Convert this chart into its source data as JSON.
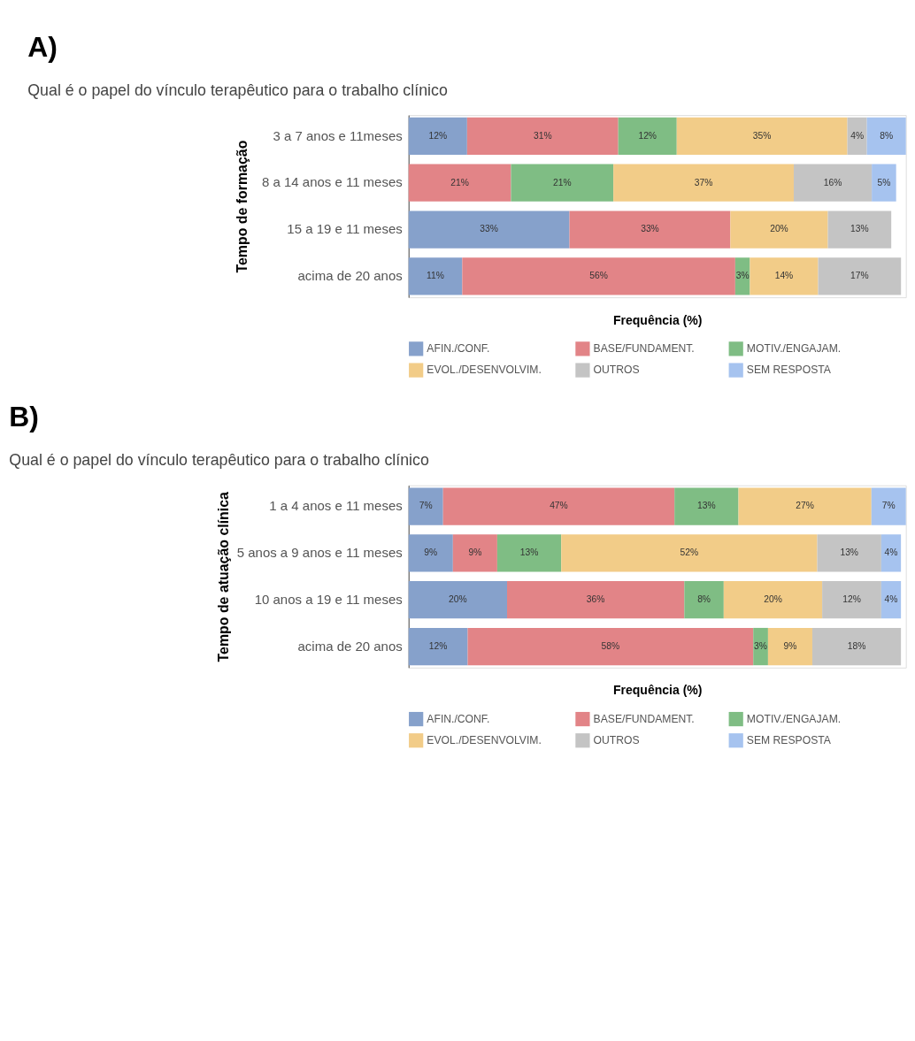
{
  "chart_data": [
    {
      "type": "bar",
      "orientation": "horizontal",
      "stacked": true,
      "title": "Qual é o papel do vínculo terapêutico para o  trabalho clínico",
      "annotations": [
        "A)"
      ],
      "xlabel": "Frequência (%)",
      "ylabel": "Tempo de formação",
      "legend": "bottom",
      "grid": false,
      "tick_labels": "y",
      "categories": [
        "3 a 7 anos e 11meses",
        "8 a 14 anos e 11 meses",
        "15  a 19 e 11 meses",
        "acima de 20 anos"
      ],
      "series": [
        {
          "name": "AFIN./CONF.",
          "color": "#86a1cb",
          "values": [
            12,
            null,
            33,
            11
          ],
          "value_labels": [
            "12%",
            null,
            "33%",
            "11%"
          ]
        },
        {
          "name": "BASE/FUNDAMENT.",
          "color": "#e28487",
          "values": [
            31,
            21,
            33,
            56
          ],
          "value_labels": [
            "31%",
            "21%",
            "33%",
            "56%"
          ]
        },
        {
          "name": "MOTIV./ENGAJAM.",
          "color": "#7fbd84",
          "values": [
            12,
            21,
            null,
            3
          ],
          "value_labels": [
            "12%",
            "21%",
            null,
            "3%"
          ]
        },
        {
          "name": "EVOL./DESENVOLVIM.",
          "color": "#f2cc88",
          "values": [
            35,
            37,
            20,
            14
          ],
          "value_labels": [
            "35%",
            "37%",
            "20%",
            "14%"
          ]
        },
        {
          "name": "OUTROS",
          "color": "#c4c4c4",
          "values": [
            4,
            16,
            13,
            17
          ],
          "value_labels": [
            "4%",
            "16%",
            "13%",
            "17%"
          ]
        },
        {
          "name": "SEM RESPOSTA",
          "color": "#a6c3ef",
          "values": [
            8,
            5,
            null,
            null
          ],
          "value_labels": [
            "8%",
            "5%",
            null,
            null
          ]
        }
      ]
    },
    {
      "type": "bar",
      "orientation": "horizontal",
      "stacked": true,
      "title": "Qual é o papel do vínculo terapêutico para o  trabalho clínico",
      "annotations": [
        "B)"
      ],
      "xlabel": "Frequência (%)",
      "ylabel": "Tempo de atuação clínica",
      "legend": "bottom",
      "grid": false,
      "tick_labels": "y",
      "categories": [
        "1 a 4 anos e 11 meses",
        "5 anos a 9 anos e 11 meses",
        "10  anos  a 19 e 11 meses",
        "acima de 20 anos"
      ],
      "series": [
        {
          "name": "AFIN./CONF.",
          "color": "#86a1cb",
          "values": [
            7,
            9,
            20,
            12
          ],
          "value_labels": [
            "7%",
            "9%",
            "20%",
            "12%"
          ]
        },
        {
          "name": "BASE/FUNDAMENT.",
          "color": "#e28487",
          "values": [
            47,
            9,
            36,
            58
          ],
          "value_labels": [
            "47%",
            "9%",
            "36%",
            "58%"
          ]
        },
        {
          "name": "MOTIV./ENGAJAM.",
          "color": "#7fbd84",
          "values": [
            13,
            13,
            8,
            3
          ],
          "value_labels": [
            "13%",
            "13%",
            "8%",
            "3%"
          ]
        },
        {
          "name": "EVOL./DESENVOLVIM.",
          "color": "#f2cc88",
          "values": [
            27,
            52,
            20,
            9
          ],
          "value_labels": [
            "27%",
            "52%",
            "20%",
            "9%"
          ]
        },
        {
          "name": "OUTROS",
          "color": "#c4c4c4",
          "values": [
            null,
            13,
            12,
            18
          ],
          "value_labels": [
            null,
            "13%",
            "12%",
            "18%"
          ]
        },
        {
          "name": "SEM RESPOSTA",
          "color": "#a6c3ef",
          "values": [
            7,
            4,
            4,
            null
          ],
          "value_labels": [
            "7%",
            "4%",
            "4%",
            null
          ]
        }
      ]
    }
  ]
}
